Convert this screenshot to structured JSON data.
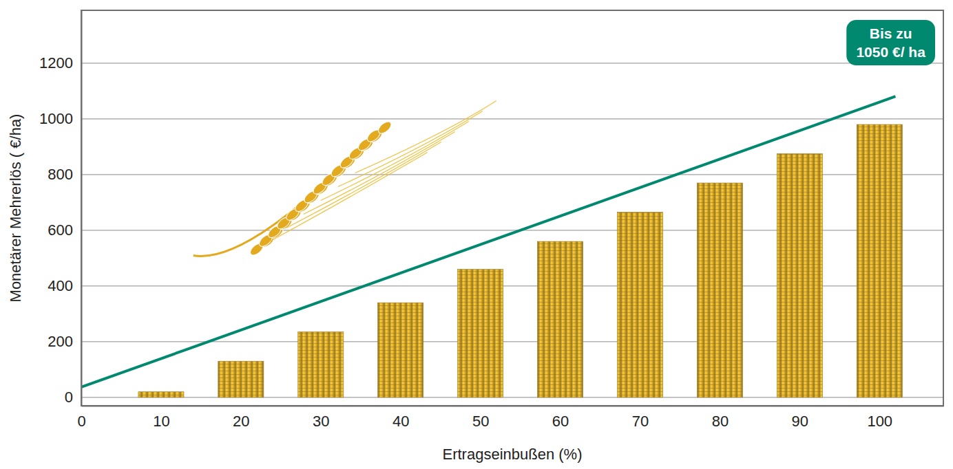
{
  "chart_data": {
    "type": "bar",
    "x_label": "Ertragseinbußen (%)",
    "y_label": "Monetärer Mehrerlös ( €/ha)",
    "x": [
      10,
      20,
      30,
      40,
      50,
      60,
      70,
      80,
      90,
      100
    ],
    "series": [
      {
        "type": "bar",
        "color": "#d4a72c",
        "values": [
          20,
          130,
          235,
          340,
          460,
          560,
          665,
          770,
          875,
          980
        ]
      },
      {
        "type": "line",
        "color": "#00896f",
        "x": [
          0,
          102
        ],
        "values": [
          37,
          1081
        ]
      }
    ],
    "annotations": [
      "Bis zu",
      "1050 €/ ha"
    ],
    "xlim": [
      0,
      108
    ],
    "xticks": [
      0,
      10,
      20,
      30,
      40,
      50,
      60,
      70,
      80,
      90,
      100
    ],
    "ylim": [
      -30,
      1390
    ],
    "yticks": [
      0,
      200,
      400,
      600,
      800,
      1000,
      1200
    ],
    "grid": true
  }
}
